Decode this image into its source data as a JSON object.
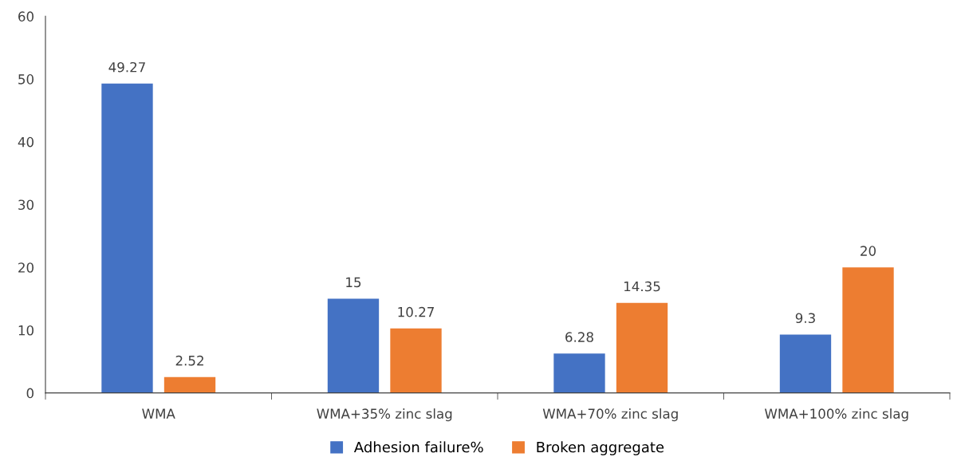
{
  "chart_data": {
    "type": "bar",
    "categories": [
      "WMA",
      "WMA+35% zinc slag",
      "WMA+70% zinc slag",
      "WMA+100% zinc slag"
    ],
    "series": [
      {
        "name": "Adhesion failure%",
        "color": "#4472c4",
        "values": [
          49.27,
          15,
          6.28,
          9.3
        ]
      },
      {
        "name": "Broken aggregate",
        "color": "#ed7d31",
        "values": [
          2.52,
          10.27,
          14.35,
          20
        ]
      }
    ],
    "ylim": [
      0,
      60
    ],
    "yticks": [
      0,
      10,
      20,
      30,
      40,
      50,
      60
    ],
    "grid": false,
    "legend": "bottom",
    "data_labels": true
  }
}
